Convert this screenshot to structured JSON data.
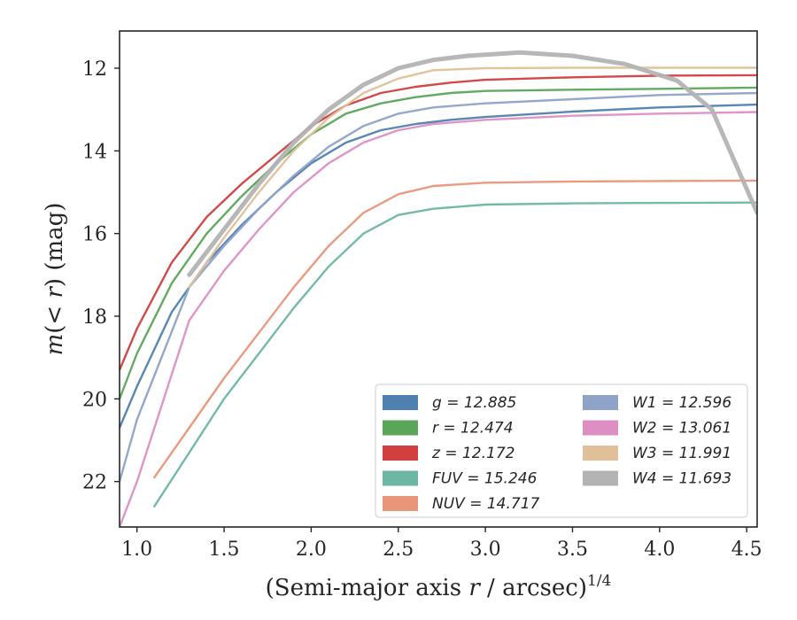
{
  "chart_data": {
    "type": "line",
    "xlabel": "(Semi-major axis r / arcsec)",
    "xlabel_var": "r",
    "xlabel_pre": "(Semi-major axis ",
    "xlabel_post": " / arcsec)",
    "xlabel_sup": "1/4",
    "ylabel": "m(< r) (mag)",
    "ylabel_pre": "m",
    "ylabel_mid": "(< ",
    "ylabel_var": "r",
    "ylabel_post": ") (mag)",
    "xlim": [
      0.9,
      4.56
    ],
    "ylim": [
      23.1,
      11.1
    ],
    "y_inverted": true,
    "x_ticks": [
      1.0,
      1.5,
      2.0,
      2.5,
      3.0,
      3.5,
      4.0,
      4.5
    ],
    "x_tick_labels": [
      "1.0",
      "1.5",
      "2.0",
      "2.5",
      "3.0",
      "3.5",
      "4.0",
      "4.5"
    ],
    "y_ticks": [
      12,
      14,
      16,
      18,
      20,
      22
    ],
    "y_tick_labels": [
      "12",
      "14",
      "16",
      "18",
      "20",
      "22"
    ],
    "grid": false,
    "legend_position": "lower-right",
    "series": [
      {
        "name": "g",
        "label": "g = 12.885",
        "color": "#4f81b0",
        "x": [
          0.9,
          1.0,
          1.2,
          1.4,
          1.6,
          1.8,
          2.0,
          2.2,
          2.4,
          2.6,
          2.8,
          3.0,
          3.5,
          4.0,
          4.56
        ],
        "y": [
          20.7,
          19.7,
          17.9,
          16.7,
          15.8,
          15.0,
          14.3,
          13.8,
          13.5,
          13.35,
          13.25,
          13.18,
          13.05,
          12.95,
          12.88
        ]
      },
      {
        "name": "r",
        "label": "r = 12.474",
        "color": "#5ba55b",
        "x": [
          0.9,
          1.0,
          1.2,
          1.4,
          1.6,
          1.8,
          2.0,
          2.2,
          2.4,
          2.6,
          2.8,
          3.0,
          3.5,
          4.0,
          4.56
        ],
        "y": [
          20.0,
          18.9,
          17.2,
          16.0,
          15.1,
          14.3,
          13.6,
          13.1,
          12.85,
          12.7,
          12.6,
          12.55,
          12.52,
          12.5,
          12.47
        ]
      },
      {
        "name": "z",
        "label": "z = 12.172",
        "color": "#d13f3f",
        "x": [
          0.9,
          1.0,
          1.2,
          1.4,
          1.6,
          1.8,
          2.0,
          2.2,
          2.4,
          2.6,
          2.8,
          3.0,
          3.5,
          4.0,
          4.56
        ],
        "y": [
          19.3,
          18.3,
          16.7,
          15.6,
          14.8,
          14.1,
          13.4,
          12.9,
          12.6,
          12.45,
          12.35,
          12.28,
          12.22,
          12.18,
          12.17
        ]
      },
      {
        "name": "FUV",
        "label": "FUV = 15.246",
        "color": "#6db6a2",
        "x": [
          1.1,
          1.3,
          1.5,
          1.7,
          1.9,
          2.1,
          2.3,
          2.5,
          2.7,
          3.0,
          3.5,
          4.0,
          4.56
        ],
        "y": [
          22.6,
          21.3,
          20.0,
          18.9,
          17.8,
          16.8,
          16.0,
          15.55,
          15.4,
          15.3,
          15.27,
          15.26,
          15.25
        ]
      },
      {
        "name": "NUV",
        "label": "NUV = 14.717",
        "color": "#e9957a",
        "x": [
          1.1,
          1.3,
          1.5,
          1.7,
          1.9,
          2.1,
          2.3,
          2.5,
          2.7,
          3.0,
          3.5,
          4.0,
          4.56
        ],
        "y": [
          21.9,
          20.7,
          19.5,
          18.4,
          17.3,
          16.3,
          15.5,
          15.05,
          14.85,
          14.77,
          14.74,
          14.73,
          14.72
        ]
      },
      {
        "name": "W1",
        "label": "W1 = 12.596",
        "color": "#8fa3c8",
        "x": [
          0.9,
          1.0,
          1.3,
          1.5,
          1.7,
          1.9,
          2.1,
          2.3,
          2.5,
          2.7,
          3.0,
          3.5,
          4.0,
          4.56
        ],
        "y": [
          22.0,
          20.5,
          17.3,
          16.3,
          15.4,
          14.6,
          13.9,
          13.4,
          13.1,
          12.95,
          12.85,
          12.75,
          12.65,
          12.6
        ]
      },
      {
        "name": "W2",
        "label": "W2 = 13.061",
        "color": "#dd8fc4",
        "x": [
          0.9,
          1.0,
          1.3,
          1.5,
          1.7,
          1.9,
          2.1,
          2.3,
          2.5,
          2.7,
          3.0,
          3.5,
          4.0,
          4.56
        ],
        "y": [
          23.1,
          22.0,
          18.1,
          16.9,
          15.9,
          15.0,
          14.3,
          13.8,
          13.5,
          13.35,
          13.25,
          13.15,
          13.1,
          13.06
        ]
      },
      {
        "name": "W3",
        "label": "W3 = 11.991",
        "color": "#dfc099",
        "x": [
          1.3,
          1.5,
          1.7,
          1.9,
          2.1,
          2.3,
          2.5,
          2.7,
          3.0,
          3.5,
          4.0,
          4.56
        ],
        "y": [
          17.3,
          16.1,
          15.0,
          14.0,
          13.2,
          12.6,
          12.25,
          12.05,
          12.0,
          11.99,
          11.99,
          11.99
        ]
      },
      {
        "name": "W4",
        "label": "W4 = 11.693",
        "color": "#b3b3b3",
        "x": [
          1.3,
          1.5,
          1.7,
          1.9,
          2.1,
          2.3,
          2.5,
          2.7,
          2.9,
          3.2,
          3.5,
          3.8,
          4.1,
          4.3,
          4.56
        ],
        "y": [
          17.0,
          15.9,
          14.8,
          13.8,
          13.0,
          12.4,
          12.0,
          11.8,
          11.7,
          11.62,
          11.7,
          11.9,
          12.3,
          13.0,
          15.5
        ]
      }
    ]
  }
}
